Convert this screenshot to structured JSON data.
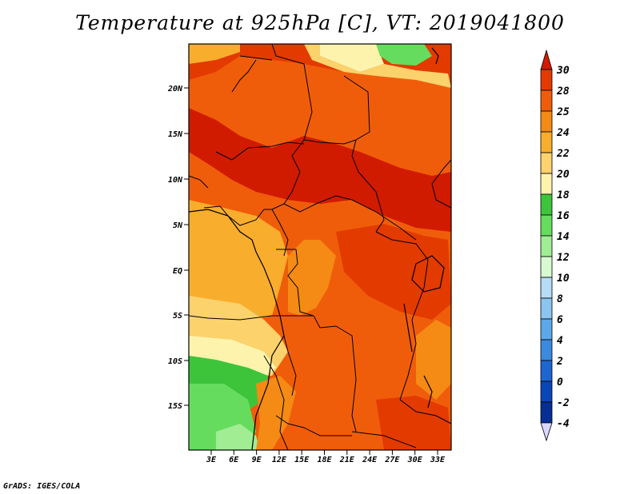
{
  "title": "Temperature at 925hPa [C], VT: 2019041800",
  "credit": "GrADS: IGES/COLA",
  "map": {
    "lon_labels": [
      "3E",
      "6E",
      "9E",
      "12E",
      "15E",
      "18E",
      "21E",
      "24E",
      "27E",
      "30E",
      "33E"
    ],
    "lat_labels": [
      "20N",
      "15N",
      "10N",
      "5N",
      "EQ",
      "5S",
      "10S",
      "15S"
    ]
  },
  "colorbar": {
    "levels": [
      "30",
      "28",
      "25",
      "24",
      "22",
      "20",
      "18",
      "16",
      "14",
      "12",
      "10",
      "8",
      "6",
      "4",
      "2",
      "0",
      "-2",
      "-4"
    ],
    "colors": {
      "above_30": "#d11b00",
      "28_30": "#e33a00",
      "25_28": "#f05d0a",
      "24_25": "#f58a14",
      "22_24": "#f8ad2c",
      "20_22": "#fbd26c",
      "18_20": "#fdf3ad",
      "16_18": "#3ec43a",
      "14_16": "#66dc5e",
      "12_14": "#a0ed94",
      "10_12": "#d8fad0",
      "8_10": "#b6dcf6",
      "6_8": "#8cc4f0",
      "4_6": "#5ca8ea",
      "2_4": "#3a8ae0",
      "0_2": "#1c66d2",
      "m2_0": "#0a46b8",
      "m4_m2": "#062e96",
      "below_m4": "#0a0a5c",
      "below_extend": "#d8d8ff"
    }
  }
}
